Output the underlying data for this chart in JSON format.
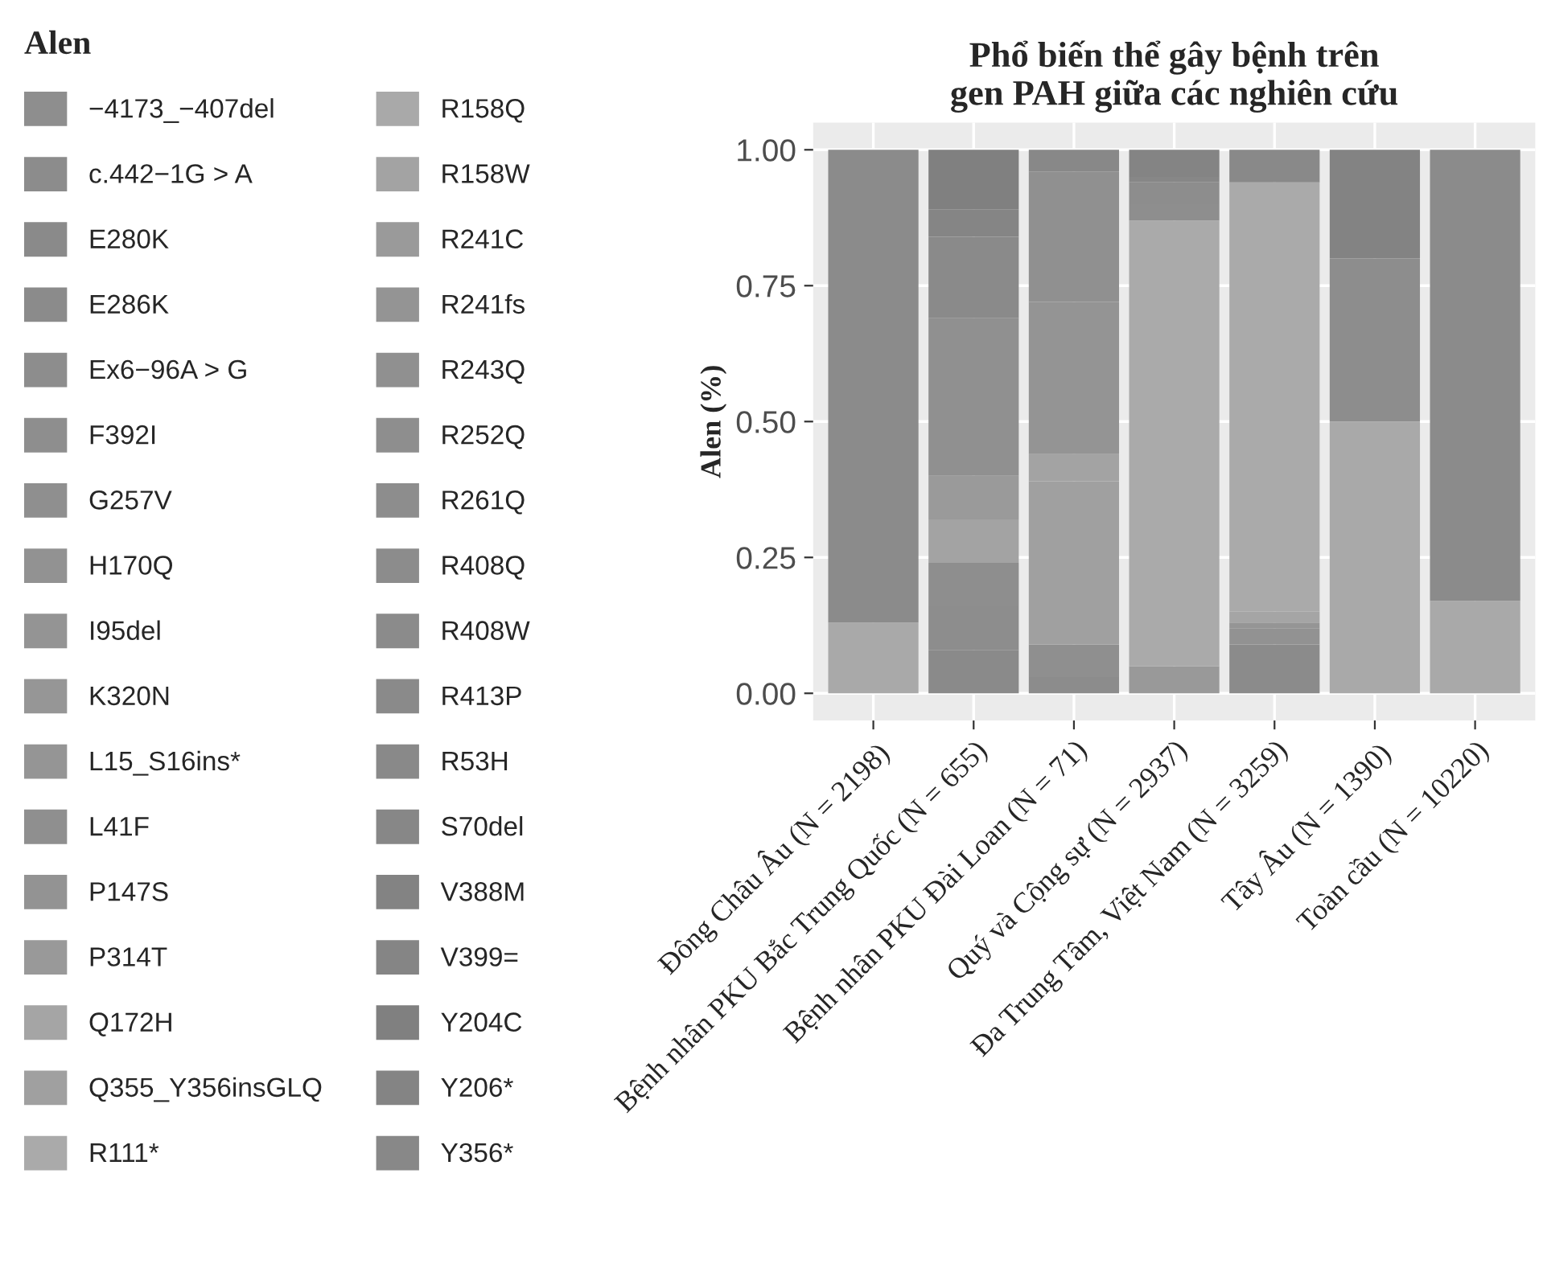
{
  "chart_data": {
    "type": "bar",
    "stacked": true,
    "title": "Phổ biến thể gây bệnh trên\ngen PAH giữa các nghiên cứu",
    "ylabel": "Alen (%)",
    "legend_title": "Alen",
    "legend": "left",
    "grid": true,
    "categories": [
      "Đông Châu Âu (N = 2198)",
      "Bệnh nhân PKU Bắc Trung Quốc (N = 655)",
      "Bệnh nhân PKU Đài Loan (N = 71)",
      "Quý và Cộng sự (N = 2937)",
      "Đa Trung Tâm, Việt Nam (N = 3259)",
      "Tây Âu (N = 1390)",
      "Toàn cầu (N = 10220)"
    ],
    "ylim": [
      -0.05,
      1.05
    ],
    "yticks": [
      {
        "value": 0,
        "label": "0.00"
      },
      {
        "value": 0.25,
        "label": "0.25"
      },
      {
        "value": 0.5,
        "label": "0.50"
      },
      {
        "value": 0.75,
        "label": "0.75"
      },
      {
        "value": 1,
        "label": "1.00"
      }
    ],
    "series": [
      {
        "name": "−4173_−407del",
        "color": "#8e8e8e",
        "values": [
          null,
          null,
          null,
          null,
          null,
          null,
          null
        ]
      },
      {
        "name": "c.442−1G > A",
        "color": "#8c8c8c",
        "values": [
          null,
          null,
          0.03,
          null,
          null,
          null,
          null
        ]
      },
      {
        "name": "E280K",
        "color": "#8a8a8a",
        "values": [
          null,
          0.08,
          null,
          null,
          null,
          null,
          null
        ]
      },
      {
        "name": "E286K",
        "color": "#8b8b8b",
        "values": [
          null,
          null,
          null,
          null,
          0.09,
          null,
          null
        ]
      },
      {
        "name": "Ex6−96A > G",
        "color": "#8d8d8d",
        "values": [
          null,
          0.08,
          null,
          null,
          null,
          null,
          null
        ]
      },
      {
        "name": "F392I",
        "color": "#8e8e8e",
        "values": [
          null,
          0.08,
          null,
          null,
          null,
          null,
          null
        ]
      },
      {
        "name": "G257V",
        "color": "#8f8f8f",
        "values": [
          null,
          null,
          0.06,
          null,
          null,
          null,
          null
        ]
      },
      {
        "name": "H170Q",
        "color": "#929292",
        "values": [
          null,
          null,
          null,
          null,
          0.03,
          null,
          null
        ]
      },
      {
        "name": "I95del",
        "color": "#949494",
        "values": [
          null,
          null,
          null,
          null,
          null,
          null,
          null
        ]
      },
      {
        "name": "K320N",
        "color": "#969696",
        "values": [
          null,
          null,
          null,
          null,
          null,
          null,
          null
        ]
      },
      {
        "name": "L15_S16ins*",
        "color": "#959595",
        "values": [
          null,
          null,
          null,
          null,
          0.01,
          null,
          null
        ]
      },
      {
        "name": "L41F",
        "color": "#8f8f8f",
        "values": [
          null,
          null,
          null,
          null,
          null,
          null,
          null
        ]
      },
      {
        "name": "P147S",
        "color": "#939393",
        "values": [
          null,
          null,
          null,
          null,
          null,
          null,
          null
        ]
      },
      {
        "name": "P314T",
        "color": "#999999",
        "values": [
          null,
          null,
          null,
          0.05,
          null,
          null,
          null
        ]
      },
      {
        "name": "Q172H",
        "color": "#a5a5a5",
        "values": [
          null,
          null,
          null,
          null,
          0.02,
          null,
          null
        ]
      },
      {
        "name": "Q355_Y356insGLQ",
        "color": "#a0a0a0",
        "values": [
          null,
          null,
          0.3,
          null,
          null,
          null,
          null
        ]
      },
      {
        "name": "R111*",
        "color": "#aaaaaa",
        "values": [
          null,
          null,
          null,
          0.82,
          0.79,
          null,
          null
        ]
      },
      {
        "name": "R158Q",
        "color": "#a9a9a9",
        "values": [
          0.13,
          null,
          null,
          null,
          null,
          0.5,
          0.17
        ]
      },
      {
        "name": "R158W",
        "color": "#a3a3a3",
        "values": [
          null,
          0.08,
          0.05,
          null,
          null,
          null,
          null
        ]
      },
      {
        "name": "R241C",
        "color": "#9a9a9a",
        "values": [
          null,
          0.08,
          null,
          null,
          null,
          null,
          null
        ]
      },
      {
        "name": "R241fs",
        "color": "#949494",
        "values": [
          null,
          null,
          0.28,
          null,
          null,
          null,
          null
        ]
      },
      {
        "name": "R243Q",
        "color": "#909090",
        "values": [
          null,
          0.29,
          0.24,
          null,
          null,
          null,
          null
        ]
      },
      {
        "name": "R252Q",
        "color": "#8e8e8e",
        "values": [
          null,
          null,
          null,
          0.03,
          null,
          null,
          null
        ]
      },
      {
        "name": "R261Q",
        "color": "#8d8d8d",
        "values": [
          null,
          null,
          null,
          0.04,
          null,
          0.3,
          null
        ]
      },
      {
        "name": "R408Q",
        "color": "#8c8c8c",
        "values": [
          null,
          null,
          null,
          null,
          null,
          null,
          null
        ]
      },
      {
        "name": "R408W",
        "color": "#8b8b8b",
        "values": [
          0.87,
          null,
          null,
          null,
          null,
          null,
          0.83
        ]
      },
      {
        "name": "R413P",
        "color": "#8a8a8a",
        "values": [
          null,
          0.15,
          null,
          null,
          null,
          null,
          null
        ]
      },
      {
        "name": "R53H",
        "color": "#898989",
        "values": [
          null,
          null,
          null,
          null,
          0.06,
          null,
          null
        ]
      },
      {
        "name": "S70del",
        "color": "#878787",
        "values": [
          null,
          null,
          null,
          0.01,
          null,
          null,
          null
        ]
      },
      {
        "name": "V388M",
        "color": "#838383",
        "values": [
          null,
          null,
          null,
          null,
          null,
          0.2,
          null
        ]
      },
      {
        "name": "V399=",
        "color": "#858585",
        "values": [
          null,
          0.05,
          null,
          null,
          null,
          null,
          null
        ]
      },
      {
        "name": "Y204C",
        "color": "#808080",
        "values": [
          null,
          0.11,
          null,
          null,
          null,
          null,
          null
        ]
      },
      {
        "name": "Y206*",
        "color": "#848484",
        "values": [
          null,
          null,
          null,
          0.05,
          null,
          null,
          null
        ]
      },
      {
        "name": "Y356*",
        "color": "#888888",
        "values": [
          null,
          null,
          0.04,
          null,
          null,
          null,
          null
        ]
      }
    ]
  }
}
